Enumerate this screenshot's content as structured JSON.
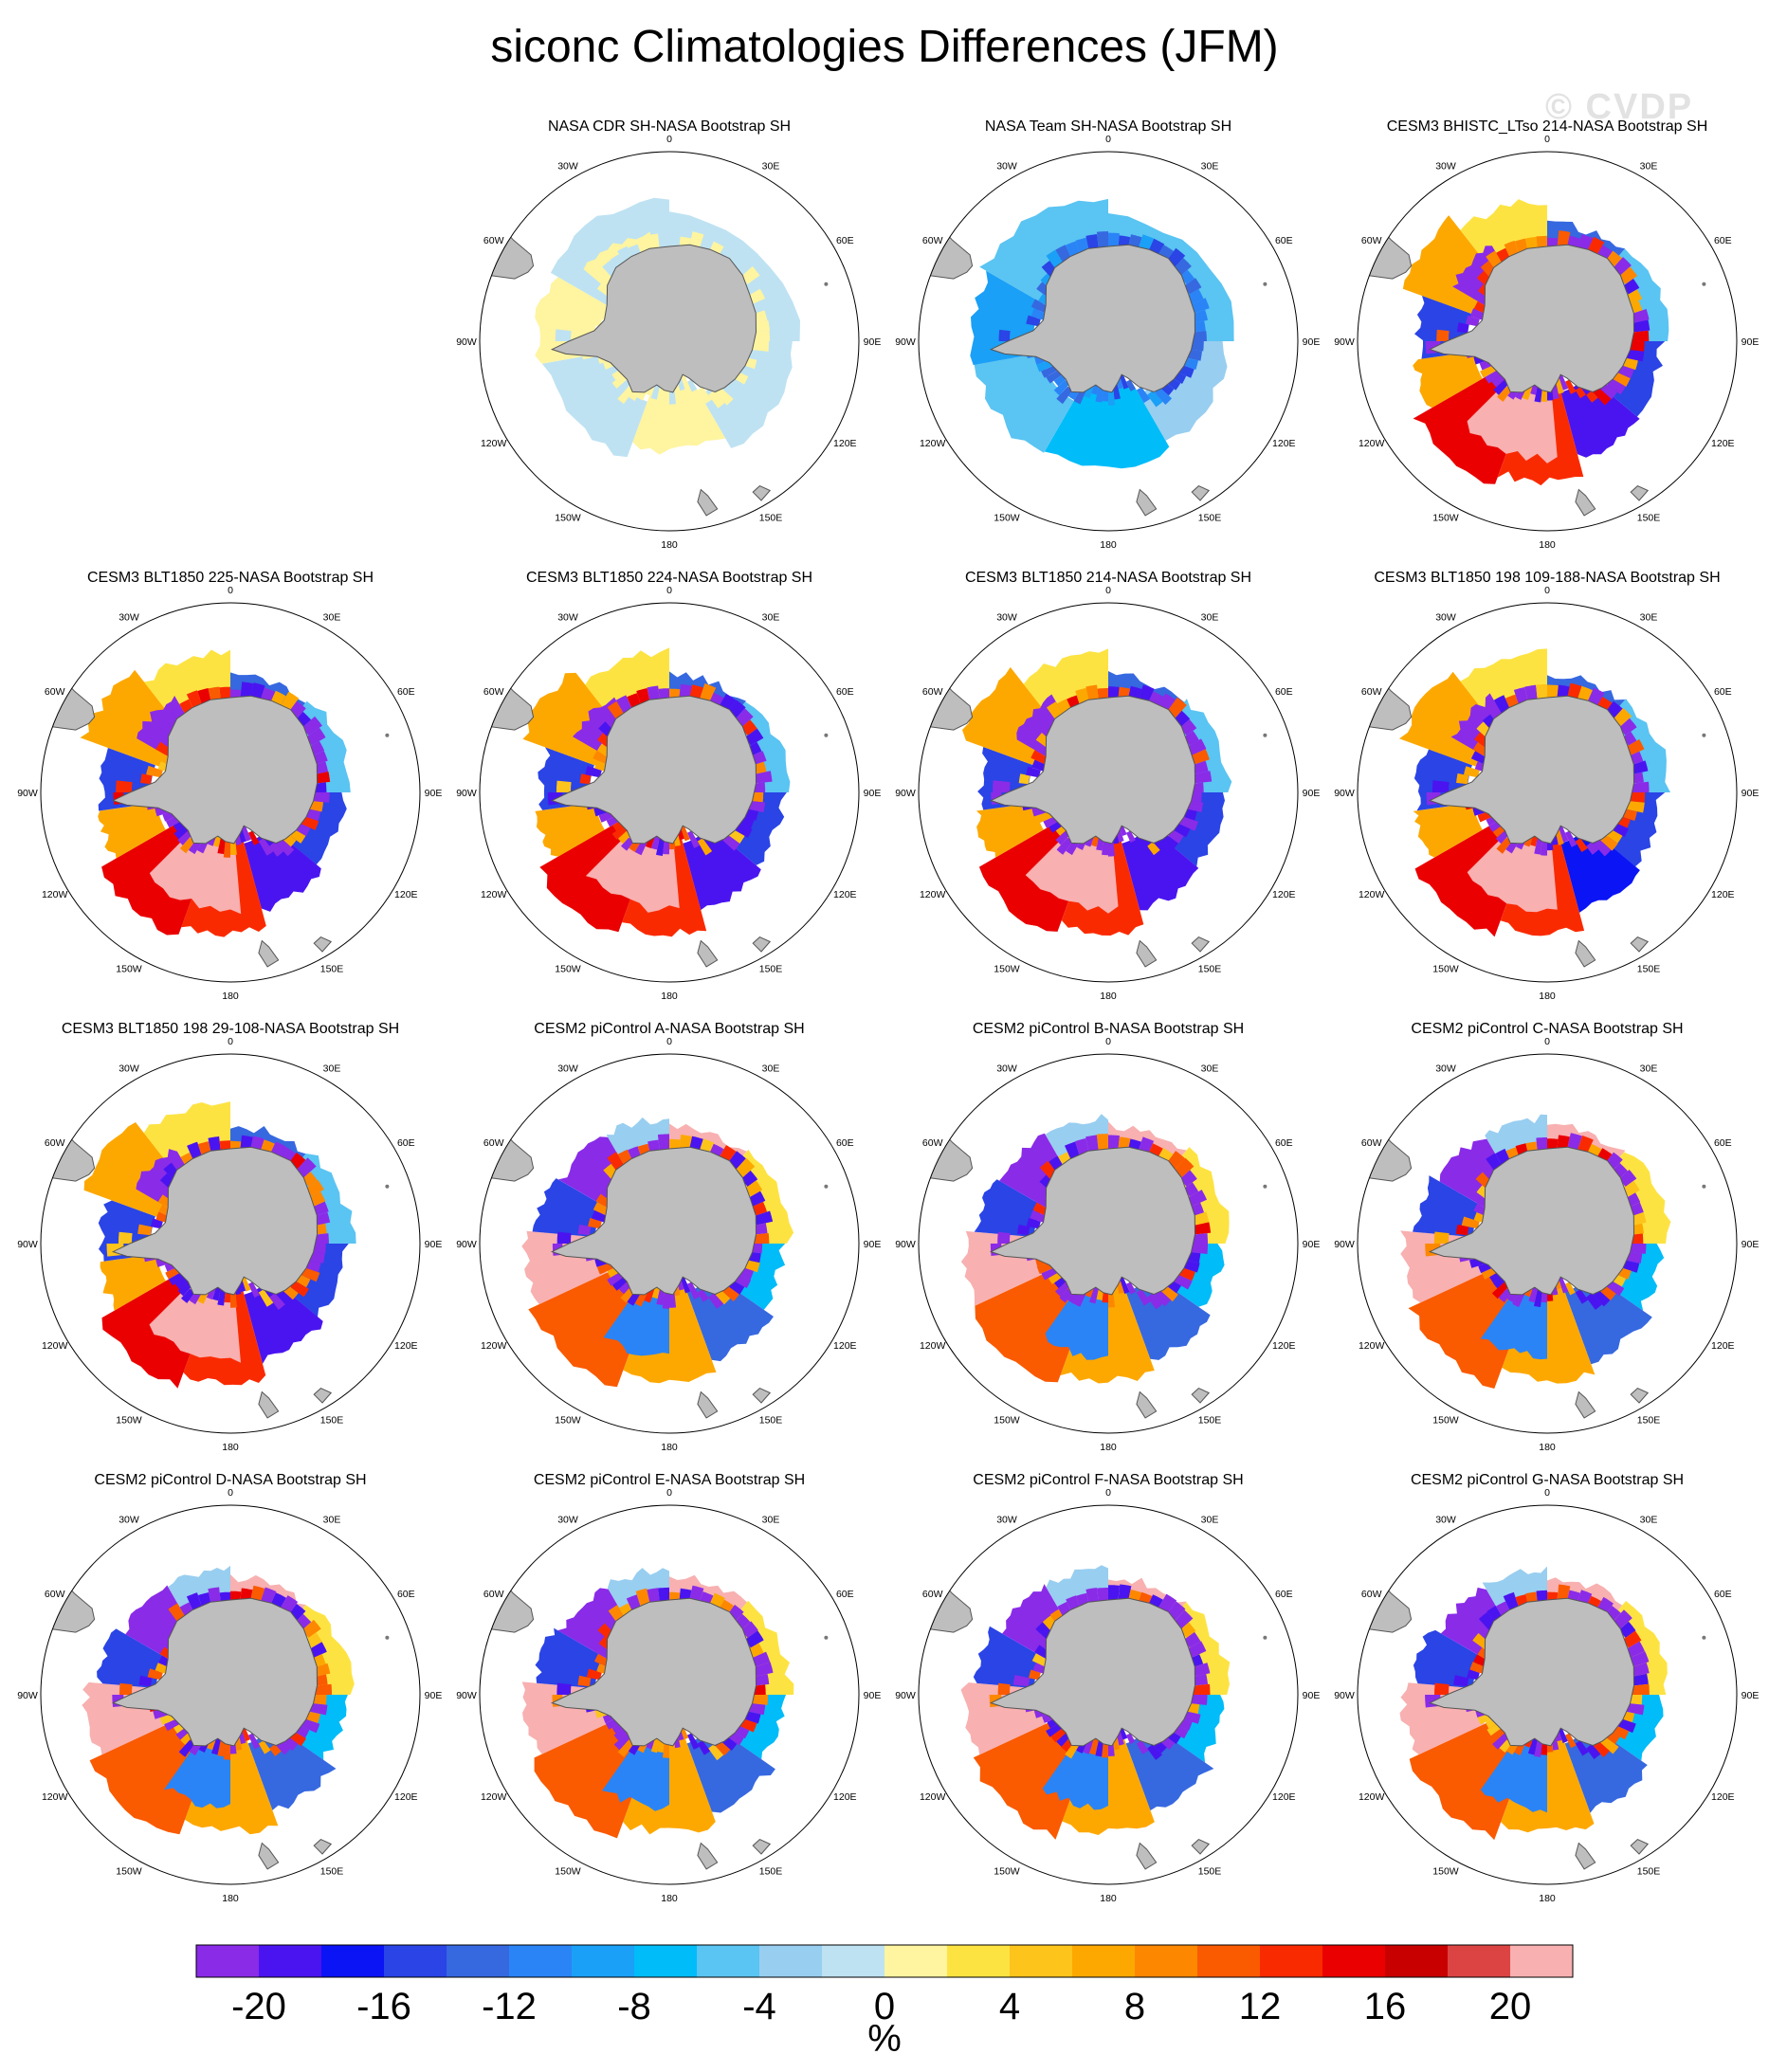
{
  "title": "siconc Climatologies Differences (JFM)",
  "watermark": "© CVDP",
  "chart_data": {
    "type": "heatmap",
    "projection": "south-polar stereographic",
    "variable": "siconc",
    "season": "JFM",
    "panels": [
      {
        "title": "NASA CDR SH-NASA Bootstrap SH",
        "pattern": "cdr"
      },
      {
        "title": "NASA Team SH-NASA Bootstrap SH",
        "pattern": "team"
      },
      {
        "title": "CESM3 BHISTC_LTso 214-NASA Bootstrap SH",
        "pattern": "cesm3"
      },
      {
        "title": "CESM3 BLT1850 225-NASA Bootstrap SH",
        "pattern": "cesm3"
      },
      {
        "title": "CESM3 BLT1850 224-NASA Bootstrap SH",
        "pattern": "cesm3"
      },
      {
        "title": "CESM3 BLT1850 214-NASA Bootstrap SH",
        "pattern": "cesm3"
      },
      {
        "title": "CESM3 BLT1850 198 109-188-NASA Bootstrap SH",
        "pattern": "cesm3"
      },
      {
        "title": "CESM3 BLT1850 198 29-108-NASA Bootstrap SH",
        "pattern": "cesm3"
      },
      {
        "title": "CESM2 piControl A-NASA Bootstrap SH",
        "pattern": "cesm2"
      },
      {
        "title": "CESM2 piControl B-NASA Bootstrap SH",
        "pattern": "cesm2"
      },
      {
        "title": "CESM2 piControl C-NASA Bootstrap SH",
        "pattern": "cesm2"
      },
      {
        "title": "CESM2 piControl D-NASA Bootstrap SH",
        "pattern": "cesm2"
      },
      {
        "title": "CESM2 piControl E-NASA Bootstrap SH",
        "pattern": "cesm2"
      },
      {
        "title": "CESM2 piControl F-NASA Bootstrap SH",
        "pattern": "cesm2"
      },
      {
        "title": "CESM2 piControl G-NASA Bootstrap SH",
        "pattern": "cesm2"
      }
    ],
    "longitude_labels": [
      "0",
      "30E",
      "60E",
      "90E",
      "120E",
      "150E",
      "180",
      "150W",
      "120W",
      "90W",
      "60W",
      "30W"
    ],
    "colorbar": {
      "units": "%",
      "levels": [
        -22,
        -20,
        -18,
        -16,
        -14,
        -12,
        -10,
        -8,
        -6,
        -4,
        -2,
        0,
        2,
        4,
        6,
        8,
        10,
        12,
        14,
        16,
        18,
        20,
        22
      ],
      "colors": [
        "#8a2be8",
        "#4a14f0",
        "#0a14f5",
        "#2a44e6",
        "#3668e0",
        "#2a84f6",
        "#1aa0f6",
        "#00bcf8",
        "#5ac4f2",
        "#98cef0",
        "#bee2f2",
        "#fff4a0",
        "#fde342",
        "#fdc41c",
        "#fda800",
        "#fd8800",
        "#fa5a00",
        "#fa2a00",
        "#ea0000",
        "#c80000",
        "#dc4444",
        "#f8b0b0"
      ],
      "tick_labels": [
        "-20",
        "-16",
        "-12",
        "-8",
        "-4",
        "0",
        "4",
        "8",
        "12",
        "16",
        "20"
      ],
      "tick_values": [
        -20,
        -16,
        -12,
        -8,
        -4,
        0,
        4,
        8,
        12,
        16,
        20
      ]
    },
    "land_color": "#bebebe"
  }
}
